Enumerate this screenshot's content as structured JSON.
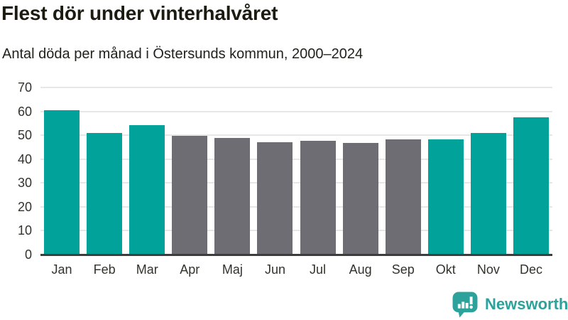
{
  "title": "Flest dör under vinterhalvåret",
  "subtitle": "Antal döda per månad i Östersunds kommun, 2000–2024",
  "colors": {
    "winter_bar": "#00a29a",
    "summer_bar": "#6e6d73",
    "gridline": "#e7e7e7",
    "axis_line": "#3d3d3d",
    "title_text": "#1b1b12",
    "tick_text": "#33332d",
    "brand": "#2da29b"
  },
  "chart_data": {
    "type": "bar",
    "title": "Flest dör under vinterhalvåret",
    "subtitle": "Antal döda per månad i Östersunds kommun, 2000–2024",
    "categories": [
      "Jan",
      "Feb",
      "Mar",
      "Apr",
      "Maj",
      "Jun",
      "Jul",
      "Aug",
      "Sep",
      "Okt",
      "Nov",
      "Dec"
    ],
    "values": [
      60.4,
      51,
      54.1,
      49.8,
      49,
      47.1,
      47.7,
      46.8,
      48.4,
      48.2,
      51,
      57.4
    ],
    "bar_colors": [
      "winter",
      "winter",
      "winter",
      "summer",
      "summer",
      "summer",
      "summer",
      "summer",
      "summer",
      "winter",
      "winter",
      "winter"
    ],
    "xlabel": "",
    "ylabel": "",
    "ylim": [
      0,
      70
    ],
    "yticks": [
      0,
      10,
      20,
      30,
      40,
      50,
      60,
      70
    ],
    "grid": true,
    "legend": false
  },
  "footer": {
    "brand_name": "Newsworthy",
    "logo_icon": "bar-chart-speech-bubble-icon"
  }
}
